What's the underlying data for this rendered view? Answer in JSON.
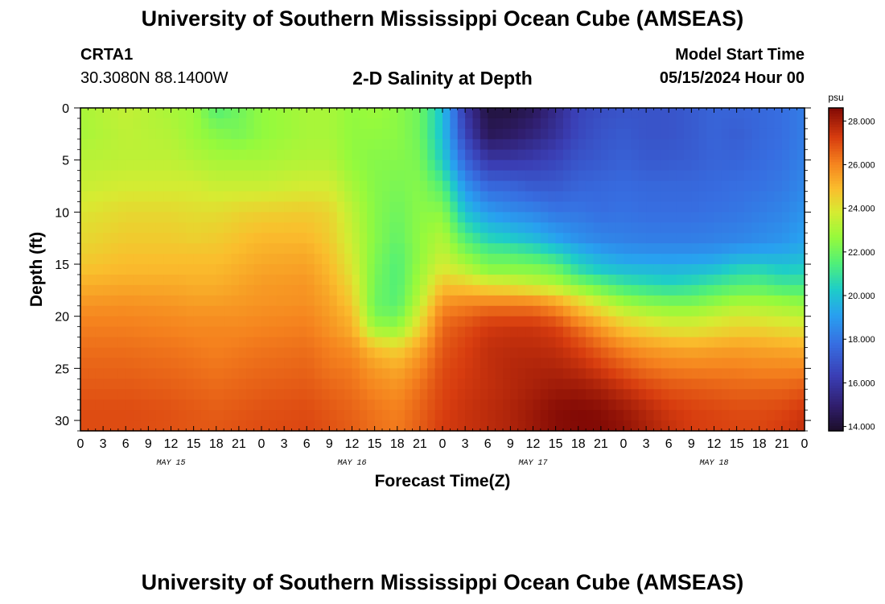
{
  "header": {
    "title": "University of Southern Mississippi Ocean Cube (AMSEAS)",
    "station": "CRTA1",
    "coords": "30.3080N  88.1400W",
    "plot_title": "2-D Salinity at Depth",
    "model_start_label": "Model Start Time",
    "model_start_value": "05/15/2024 Hour 00"
  },
  "footer": {
    "title": "University of Southern Mississippi Ocean Cube (AMSEAS)"
  },
  "chart_data": {
    "type": "heatmap",
    "title": "2-D Salinity at Depth",
    "xlabel": "Forecast Time(Z)",
    "ylabel": "Depth (ft)",
    "x_tick_labels": [
      "0",
      "3",
      "6",
      "9",
      "12",
      "15",
      "18",
      "21",
      "0",
      "3",
      "6",
      "9",
      "12",
      "15",
      "18",
      "21",
      "0",
      "3",
      "6",
      "9",
      "12",
      "15",
      "18",
      "21",
      "0",
      "3",
      "6",
      "9",
      "12",
      "15",
      "18",
      "21",
      "0"
    ],
    "day_labels": [
      {
        "label": "MAY 15",
        "hour": 12
      },
      {
        "label": "MAY 16",
        "hour": 36
      },
      {
        "label": "MAY 17",
        "hour": 60
      },
      {
        "label": "MAY 18",
        "hour": 84
      }
    ],
    "x_range_hours": [
      0,
      96
    ],
    "y_ticks": [
      0,
      5,
      10,
      15,
      20,
      25,
      30
    ],
    "y_range_ft": [
      0,
      31
    ],
    "colorbar": {
      "unit": "psu",
      "range": [
        13.8,
        28.6
      ],
      "tick_values": [
        28,
        26,
        24,
        22,
        20,
        18,
        16,
        14
      ],
      "tick_labels": [
        "28.000",
        "26.000",
        "24.000",
        "22.000",
        "20.000",
        "18.000",
        "16.000",
        "14.000"
      ]
    },
    "grid_hours": [
      0,
      6,
      12,
      15,
      18,
      21,
      24,
      30,
      33,
      36,
      39,
      42,
      45,
      48,
      51,
      54,
      57,
      60,
      63,
      66,
      69,
      72,
      75,
      78,
      81,
      84,
      87,
      90,
      93,
      96
    ],
    "grid_depths_ft": [
      0,
      2.5,
      5,
      7.5,
      10,
      12.5,
      14,
      15.5,
      17,
      18.5,
      20,
      21.5,
      23,
      25,
      27,
      29,
      31
    ],
    "salinity_psu": [
      [
        23.0,
        23.5,
        23.0,
        22.8,
        21.5,
        22.0,
        22.6,
        23.0,
        23.0,
        22.6,
        22.8,
        22.5,
        22.0,
        20.0,
        16.0,
        14.2,
        14.2,
        14.6,
        15.5,
        16.5,
        16.8,
        17.0,
        17.0,
        17.0,
        17.2,
        17.5,
        17.5,
        17.6,
        17.8,
        18.2
      ],
      [
        23.0,
        23.4,
        23.2,
        22.8,
        22.4,
        22.2,
        22.6,
        23.0,
        23.0,
        22.6,
        22.6,
        22.5,
        22.0,
        20.0,
        16.5,
        14.6,
        14.8,
        15.2,
        15.8,
        16.6,
        17.0,
        17.2,
        17.0,
        17.0,
        17.2,
        17.5,
        17.3,
        17.6,
        17.8,
        18.2
      ],
      [
        23.3,
        23.4,
        23.4,
        23.2,
        23.0,
        23.0,
        23.0,
        23.2,
        23.2,
        22.6,
        22.4,
        22.4,
        22.2,
        20.3,
        17.5,
        16.0,
        16.0,
        16.2,
        16.5,
        17.0,
        17.2,
        17.4,
        17.2,
        17.2,
        17.3,
        17.5,
        17.5,
        17.7,
        17.9,
        18.3
      ],
      [
        23.6,
        23.8,
        23.8,
        23.8,
        23.6,
        23.6,
        23.6,
        23.8,
        23.8,
        23.0,
        22.4,
        22.2,
        22.4,
        21.5,
        18.8,
        17.6,
        17.5,
        17.2,
        17.2,
        17.5,
        17.6,
        17.7,
        17.6,
        17.6,
        17.6,
        17.7,
        17.8,
        17.9,
        18.1,
        18.5
      ],
      [
        24.0,
        24.3,
        24.3,
        24.2,
        24.2,
        24.4,
        24.5,
        24.6,
        24.4,
        23.4,
        22.4,
        22.0,
        22.5,
        22.5,
        20.0,
        19.0,
        18.6,
        18.4,
        18.0,
        18.0,
        17.8,
        17.9,
        17.8,
        17.8,
        17.8,
        17.9,
        18.0,
        18.2,
        18.4,
        18.8
      ],
      [
        24.3,
        24.6,
        24.6,
        24.5,
        24.6,
        24.8,
        25.0,
        25.0,
        24.6,
        23.6,
        22.4,
        21.8,
        22.6,
        23.2,
        21.5,
        20.5,
        20.2,
        19.8,
        19.2,
        18.7,
        18.4,
        18.3,
        18.2,
        18.2,
        18.2,
        18.3,
        18.4,
        18.6,
        18.8,
        19.2
      ],
      [
        24.5,
        24.8,
        24.8,
        24.8,
        24.8,
        25.0,
        25.2,
        25.3,
        24.8,
        23.8,
        22.3,
        21.6,
        22.6,
        23.5,
        22.4,
        21.6,
        21.5,
        21.2,
        20.6,
        19.8,
        19.2,
        18.9,
        18.8,
        18.8,
        18.8,
        18.9,
        19.2,
        19.3,
        19.4,
        19.6
      ],
      [
        24.8,
        25.0,
        25.0,
        25.0,
        25.0,
        25.2,
        25.4,
        25.5,
        25.0,
        24.0,
        22.2,
        21.5,
        22.8,
        24.0,
        23.4,
        22.5,
        22.5,
        22.4,
        22.0,
        20.8,
        20.2,
        19.9,
        19.8,
        19.7,
        19.8,
        20.0,
        20.5,
        20.6,
        20.3,
        20.4
      ],
      [
        25.2,
        25.3,
        25.3,
        25.2,
        25.2,
        25.4,
        25.6,
        25.7,
        25.2,
        24.3,
        22.1,
        21.5,
        23.0,
        24.8,
        24.6,
        24.2,
        24.0,
        23.6,
        23.2,
        22.4,
        21.7,
        21.1,
        20.8,
        20.6,
        20.8,
        21.2,
        21.5,
        21.6,
        21.2,
        21.2
      ],
      [
        25.6,
        25.7,
        25.6,
        25.5,
        25.5,
        25.6,
        25.7,
        25.8,
        25.4,
        24.6,
        22.0,
        21.6,
        23.4,
        25.6,
        25.8,
        25.8,
        25.8,
        25.7,
        25.2,
        24.3,
        23.4,
        22.6,
        22.2,
        22.0,
        22.0,
        22.4,
        22.8,
        22.8,
        22.6,
        22.4
      ],
      [
        26.0,
        26.0,
        25.9,
        25.8,
        25.8,
        25.8,
        25.9,
        26.0,
        25.6,
        25.0,
        22.2,
        22.0,
        24.0,
        26.3,
        26.6,
        27.0,
        27.0,
        27.0,
        26.6,
        25.6,
        24.8,
        24.0,
        23.6,
        23.3,
        23.3,
        23.6,
        23.9,
        23.8,
        23.6,
        23.4
      ],
      [
        26.2,
        26.2,
        26.1,
        26.0,
        26.0,
        26.0,
        26.1,
        26.2,
        25.8,
        25.3,
        23.2,
        23.0,
        24.6,
        26.6,
        27.0,
        27.4,
        27.5,
        27.5,
        27.3,
        26.6,
        25.8,
        25.0,
        24.6,
        24.3,
        24.2,
        24.4,
        24.6,
        24.6,
        24.4,
        24.3
      ],
      [
        26.4,
        26.4,
        26.3,
        26.2,
        26.1,
        26.2,
        26.3,
        26.4,
        26.1,
        25.8,
        24.8,
        24.4,
        25.4,
        26.8,
        27.2,
        27.6,
        27.7,
        27.7,
        27.6,
        27.2,
        26.6,
        26.0,
        25.6,
        25.4,
        25.3,
        25.4,
        25.5,
        25.4,
        25.3,
        25.2
      ],
      [
        26.6,
        26.6,
        26.5,
        26.4,
        26.3,
        26.4,
        26.5,
        26.6,
        26.3,
        26.2,
        25.6,
        25.3,
        26.0,
        27.0,
        27.3,
        27.6,
        27.8,
        27.9,
        27.9,
        27.7,
        27.3,
        26.8,
        26.4,
        26.2,
        26.1,
        26.1,
        26.1,
        26.0,
        26.0,
        26.0
      ],
      [
        26.8,
        26.8,
        26.7,
        26.6,
        26.5,
        26.6,
        26.7,
        26.8,
        26.6,
        26.4,
        26.0,
        25.8,
        26.4,
        27.1,
        27.4,
        27.6,
        27.8,
        28.0,
        28.2,
        28.2,
        28.0,
        27.6,
        27.2,
        26.9,
        26.8,
        26.7,
        26.6,
        26.6,
        26.6,
        26.8
      ],
      [
        27.0,
        27.0,
        26.9,
        26.8,
        26.7,
        26.8,
        26.9,
        27.0,
        26.8,
        26.6,
        26.3,
        26.1,
        26.6,
        27.2,
        27.5,
        27.7,
        27.9,
        28.2,
        28.5,
        28.6,
        28.5,
        28.2,
        27.8,
        27.4,
        27.2,
        27.1,
        27.0,
        27.0,
        27.1,
        27.4
      ],
      [
        27.0,
        27.0,
        26.9,
        26.8,
        26.8,
        26.9,
        27.0,
        27.1,
        26.9,
        26.7,
        26.4,
        26.2,
        26.7,
        27.3,
        27.5,
        27.7,
        27.9,
        28.2,
        28.5,
        28.6,
        28.6,
        28.4,
        28.0,
        27.6,
        27.3,
        27.2,
        27.1,
        27.1,
        27.3,
        27.6
      ]
    ]
  }
}
